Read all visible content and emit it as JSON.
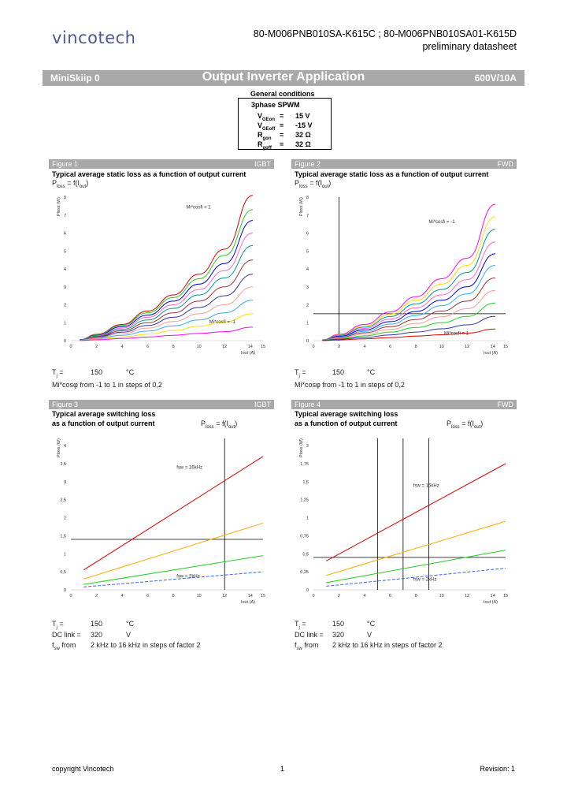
{
  "header": {
    "logo": "vincotech",
    "part_numbers": "80-M006PNB010SA-K615C ; 80-M006PNB010SA01-K615D",
    "doc_status": "preliminary datasheet"
  },
  "titlebar": {
    "left": "MiniSkiip 0",
    "center": "Output Inverter Application",
    "right": "600V/10A"
  },
  "general_conditions": {
    "title": "General conditions",
    "heading": "3phase SPWM",
    "rows": [
      {
        "sym": "V",
        "sub": "GEon",
        "eq": "=",
        "val": "15 V"
      },
      {
        "sym": "V",
        "sub": "GEoff",
        "eq": "=",
        "val": "-15 V"
      },
      {
        "sym": "R",
        "sub": "gon",
        "eq": "=",
        "val": "32 Ω"
      },
      {
        "sym": "R",
        "sub": "goff",
        "eq": "=",
        "val": "32 Ω"
      }
    ]
  },
  "figures": [
    {
      "label": "Figure 1",
      "tag": "IGBT",
      "title1": "Typical average static loss as a function of output current",
      "title2": "",
      "formula": "P",
      "formula_sub": "loss",
      "formula_rest": " = f(I",
      "formula_sub2": "out",
      "formula_end": ")",
      "ann_top": "Mi*cosfi = 1",
      "ann_bottom": "Mi*cosfi = -1",
      "cond1_label": "T",
      "cond1_sub": "j",
      "cond1_eq": "=",
      "cond1_val": "150",
      "cond1_unit": "°C",
      "note": "Mi*cosφ from -1 to 1 in steps of 0,2"
    },
    {
      "label": "Figure 2",
      "tag": "FWD",
      "title1": "Typical average static loss as a function of output current",
      "title2": "",
      "formula": "P",
      "formula_sub": "loss",
      "formula_rest": " = f(I",
      "formula_sub2": "out",
      "formula_end": ")",
      "ann_top": "Mi*cosfi = -1",
      "ann_bottom": "Mi*cosfi = 1",
      "cond1_label": "T",
      "cond1_sub": "j",
      "cond1_eq": "=",
      "cond1_val": "150",
      "cond1_unit": "°C",
      "note": "Mi*cosφ from -1 to 1 in steps of 0,2"
    },
    {
      "label": "Figure 3",
      "tag": "IGBT",
      "title1": "Typical average switching loss",
      "title2": "as a function of output current",
      "formula": "P",
      "formula_sub": "loss",
      "formula_rest": " = f(I",
      "formula_sub2": "out",
      "formula_end": ")",
      "ann_top": "fsw = 16kHz",
      "ann_bottom": "fsw = 2kHz",
      "cond1_label": "T",
      "cond1_sub": "j",
      "cond1_eq": "=",
      "cond1_val": "150",
      "cond1_unit": "°C",
      "cond2_label": "DC link",
      "cond2_eq": "=",
      "cond2_val": "320",
      "cond2_unit": "V",
      "cond3_label": "f",
      "cond3_sub": "sw",
      "cond3_eq": "from",
      "cond3_val": "2 kHz to 16 kHz in steps of factor 2"
    },
    {
      "label": "Figure 4",
      "tag": "FWD",
      "title1": "Typical average switching loss",
      "title2": "as a function of output current",
      "formula": "P",
      "formula_sub": "loss",
      "formula_rest": " = f(I",
      "formula_sub2": "out",
      "formula_end": ")",
      "ann_top": "fsw = 16kHz",
      "ann_bottom": "fsw = 2kHz",
      "cond1_label": "T",
      "cond1_sub": "j",
      "cond1_eq": "=",
      "cond1_val": "150",
      "cond1_unit": "°C",
      "cond2_label": "DC link",
      "cond2_eq": "=",
      "cond2_val": "320",
      "cond2_unit": "V",
      "cond3_label": "f",
      "cond3_sub": "sw",
      "cond3_eq": "from",
      "cond3_val": "2 kHz to 16 kHz in steps of factor 2"
    }
  ],
  "footer": {
    "copyright": "copyright Vincotech",
    "page": "1",
    "revision": "Revision: 1"
  },
  "chart_data": [
    {
      "id": "fig1",
      "type": "line",
      "title": "Typical average static loss as a function of output current",
      "xlabel": "Iout (A)",
      "ylabel": "Ploss (W)",
      "xlim": [
        0,
        15
      ],
      "ylim": [
        0,
        8
      ],
      "xticks": [
        0,
        2,
        4,
        6,
        8,
        10,
        12,
        14,
        15
      ],
      "yticks": [
        0,
        1,
        2,
        3,
        4,
        5,
        6,
        7,
        8
      ],
      "x": [
        0.7,
        2,
        4,
        6,
        8,
        10,
        12,
        14.2
      ],
      "series": [
        {
          "name": "Mi*cosfi = 1",
          "color": "#dd0000",
          "values": [
            0.05,
            0.35,
            0.9,
            1.65,
            2.55,
            3.7,
            5.1,
            8.1
          ]
        },
        {
          "name": "Mi*cosfi = 0.8",
          "color": "#22cc22",
          "values": [
            0.05,
            0.33,
            0.85,
            1.55,
            2.4,
            3.45,
            4.75,
            7.3
          ]
        },
        {
          "name": "Mi*cosfi = 0.6",
          "color": "#0000dd",
          "values": [
            0.05,
            0.3,
            0.78,
            1.42,
            2.2,
            3.15,
            4.3,
            6.7
          ]
        },
        {
          "name": "Mi*cosfi = 0.4",
          "color": "#ff66cc",
          "values": [
            0.04,
            0.28,
            0.7,
            1.3,
            2.0,
            2.85,
            3.9,
            6.0
          ]
        },
        {
          "name": "Mi*cosfi = 0.2",
          "color": "#009999",
          "values": [
            0.04,
            0.25,
            0.63,
            1.15,
            1.8,
            2.55,
            3.5,
            5.3
          ]
        },
        {
          "name": "Mi*cosfi = 0",
          "color": "#993333",
          "values": [
            0.03,
            0.22,
            0.55,
            1.0,
            1.55,
            2.2,
            3.0,
            4.5
          ]
        },
        {
          "name": "Mi*cosfi = -0.2",
          "color": "#3333aa",
          "values": [
            0.03,
            0.19,
            0.47,
            0.85,
            1.3,
            1.85,
            2.5,
            3.7
          ]
        },
        {
          "name": "Mi*cosfi = -0.4",
          "color": "#ff9999",
          "values": [
            0.02,
            0.16,
            0.39,
            0.7,
            1.07,
            1.5,
            2.0,
            3.0
          ]
        },
        {
          "name": "Mi*cosfi = -0.6",
          "color": "#33aaff",
          "values": [
            0.02,
            0.12,
            0.3,
            0.53,
            0.82,
            1.15,
            1.55,
            2.25
          ]
        },
        {
          "name": "Mi*cosfi = -0.8",
          "color": "#ffdd00",
          "values": [
            0.01,
            0.08,
            0.2,
            0.36,
            0.56,
            0.8,
            1.05,
            1.5
          ]
        },
        {
          "name": "Mi*cosfi = -1",
          "color": "#ff00ff",
          "values": [
            0.01,
            0.05,
            0.12,
            0.2,
            0.3,
            0.4,
            0.5,
            0.75
          ]
        }
      ],
      "refs": {
        "hline": null,
        "vlines": []
      }
    },
    {
      "id": "fig2",
      "type": "line",
      "title": "Typical average static loss as a function of output current",
      "xlabel": "Iout (A)",
      "ylabel": "Ploss (W)",
      "xlim": [
        0,
        15
      ],
      "ylim": [
        0,
        8
      ],
      "xticks": [
        0,
        2,
        4,
        6,
        8,
        10,
        12,
        14,
        15
      ],
      "yticks": [
        0,
        1,
        2,
        3,
        4,
        5,
        6,
        7,
        8
      ],
      "x": [
        0.7,
        2,
        4,
        6,
        8,
        10,
        12,
        14.2
      ],
      "series": [
        {
          "name": "Mi*cosfi = -1",
          "color": "#ff00ff",
          "values": [
            0.05,
            0.35,
            0.9,
            1.6,
            2.45,
            3.45,
            4.6,
            7.6
          ]
        },
        {
          "name": "Mi*cosfi = -0.8",
          "color": "#ffdd00",
          "values": [
            0.05,
            0.32,
            0.82,
            1.47,
            2.25,
            3.15,
            4.2,
            6.9
          ]
        },
        {
          "name": "Mi*cosfi = -0.6",
          "color": "#009999",
          "values": [
            0.04,
            0.3,
            0.75,
            1.34,
            2.05,
            2.85,
            3.8,
            6.2
          ]
        },
        {
          "name": "Mi*cosfi = -0.4",
          "color": "#ff66cc",
          "values": [
            0.04,
            0.27,
            0.68,
            1.2,
            1.83,
            2.55,
            3.4,
            5.5
          ]
        },
        {
          "name": "Mi*cosfi = -0.2",
          "color": "#0000dd",
          "values": [
            0.04,
            0.24,
            0.6,
            1.06,
            1.62,
            2.25,
            3.0,
            4.85
          ]
        },
        {
          "name": "Mi*cosfi = 0",
          "color": "#33aaff",
          "values": [
            0.03,
            0.21,
            0.52,
            0.92,
            1.4,
            1.95,
            2.6,
            4.2
          ]
        },
        {
          "name": "Mi*cosfi = 0.2",
          "color": "#993333",
          "values": [
            0.03,
            0.18,
            0.44,
            0.78,
            1.18,
            1.65,
            2.2,
            3.5
          ]
        },
        {
          "name": "Mi*cosfi = 0.4",
          "color": "#ff9999",
          "values": [
            0.02,
            0.15,
            0.36,
            0.63,
            0.96,
            1.33,
            1.78,
            2.8
          ]
        },
        {
          "name": "Mi*cosfi = 0.6",
          "color": "#22cc22",
          "values": [
            0.02,
            0.11,
            0.27,
            0.48,
            0.73,
            1.0,
            1.35,
            2.1
          ]
        },
        {
          "name": "Mi*cosfi = 0.8",
          "color": "#3333aa",
          "values": [
            0.01,
            0.08,
            0.18,
            0.32,
            0.48,
            0.66,
            0.88,
            1.35
          ]
        },
        {
          "name": "Mi*cosfi = 1",
          "color": "#dd0000",
          "values": [
            0.01,
            0.04,
            0.1,
            0.17,
            0.25,
            0.33,
            0.42,
            0.65
          ]
        }
      ],
      "refs": {
        "hline": 1.5,
        "vlines": [
          2
        ]
      }
    },
    {
      "id": "fig3",
      "type": "line",
      "title": "Typical average switching loss as a function of output current",
      "xlabel": "Iout (A)",
      "ylabel": "Ploss (W)",
      "xlim": [
        0,
        15
      ],
      "ylim": [
        0,
        4.2
      ],
      "xticks": [
        0,
        2,
        4,
        6,
        8,
        10,
        12,
        14,
        15
      ],
      "yticks": [
        0,
        0.5,
        1,
        1.5,
        2,
        2.5,
        3,
        3.5,
        4
      ],
      "x": [
        1,
        15
      ],
      "series": [
        {
          "name": "fsw = 16kHz",
          "color": "#dd0000",
          "values": [
            0.55,
            3.7
          ]
        },
        {
          "name": "fsw = 8kHz",
          "color": "#ffaa00",
          "values": [
            0.3,
            1.85
          ]
        },
        {
          "name": "fsw = 4kHz",
          "color": "#22cc22",
          "values": [
            0.15,
            0.95
          ]
        },
        {
          "name": "fsw = 2kHz",
          "color": "#3366ff",
          "values": [
            0.08,
            0.5
          ]
        }
      ],
      "refs": {
        "hline": 1.4,
        "vlines": [
          12
        ]
      }
    },
    {
      "id": "fig4",
      "type": "line",
      "title": "Typical average switching loss as a function of output current",
      "xlabel": "Iout (A)",
      "ylabel": "Ploss (W)",
      "xlim": [
        0,
        15
      ],
      "ylim": [
        0,
        2.1
      ],
      "xticks": [
        0,
        2,
        4,
        6,
        8,
        10,
        12,
        14,
        15
      ],
      "yticks": [
        0,
        0.25,
        0.5,
        0.75,
        1,
        1.25,
        1.5,
        1.75,
        2
      ],
      "x": [
        1,
        15
      ],
      "series": [
        {
          "name": "fsw = 16kHz",
          "color": "#dd0000",
          "values": [
            0.4,
            1.75
          ]
        },
        {
          "name": "fsw = 8kHz",
          "color": "#ffaa00",
          "values": [
            0.2,
            0.95
          ]
        },
        {
          "name": "fsw = 4kHz",
          "color": "#22cc22",
          "values": [
            0.1,
            0.55
          ]
        },
        {
          "name": "fsw = 2kHz",
          "color": "#3366ff",
          "values": [
            0.05,
            0.3
          ]
        }
      ],
      "refs": {
        "hline": 0.45,
        "vlines": [
          5,
          7,
          9
        ]
      }
    }
  ]
}
